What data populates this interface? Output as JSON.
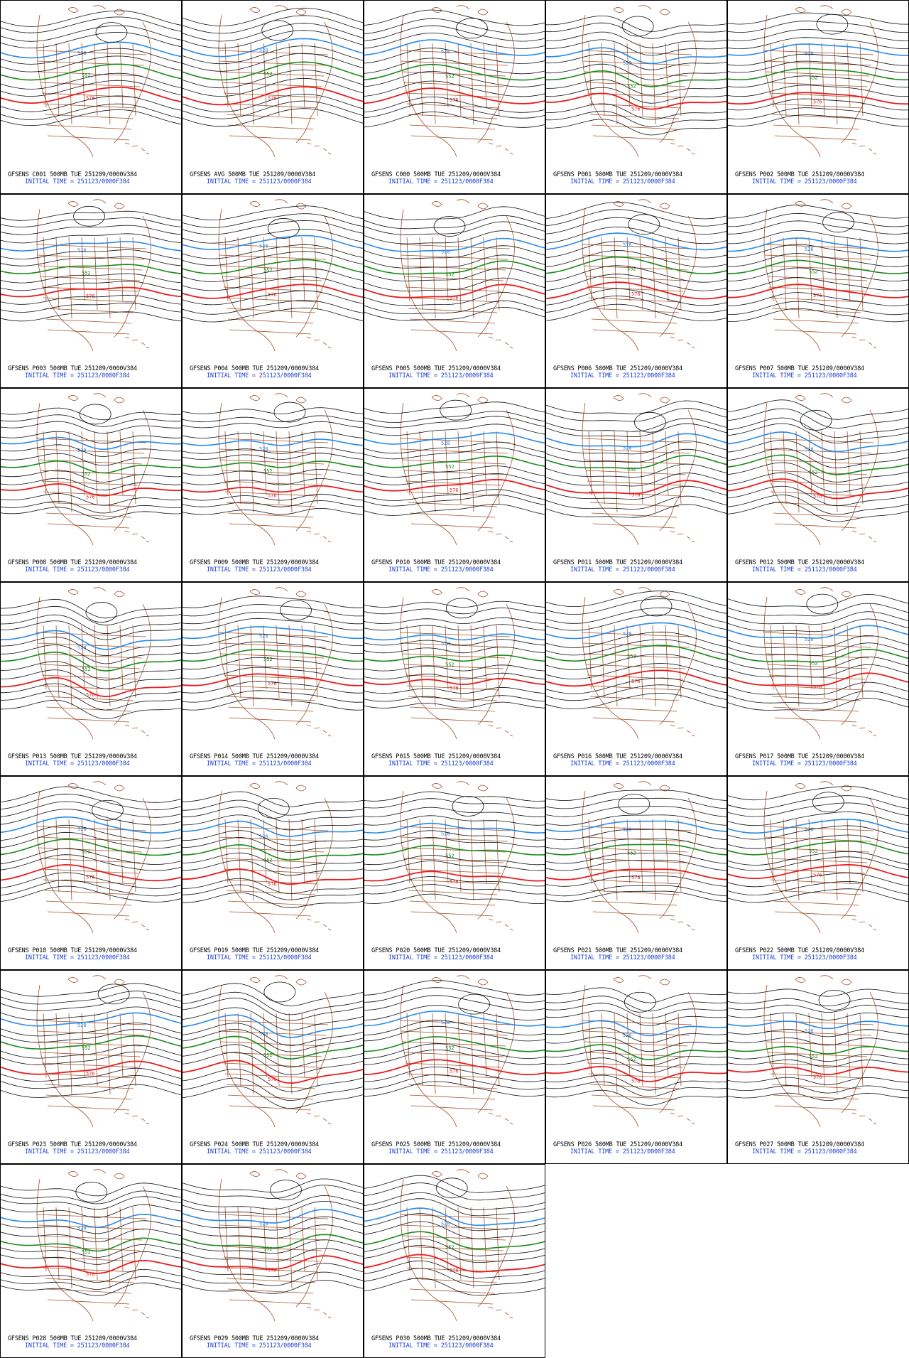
{
  "page": {
    "columns": 5,
    "initial_time_label": "INITIAL TIME = 251123/0000F384"
  },
  "colors": {
    "contour": "#111111",
    "contour_552": "#1a8a1a",
    "contour_576": "#e81c1c",
    "contour_528": "#2a8ae8",
    "map_border": "#a0522d",
    "caption_main": "#000000",
    "caption_time": "#1d3fd0"
  },
  "contour_labels": {
    "blue": "528",
    "green": "552",
    "red": "576"
  },
  "panels": [
    {
      "caption": "GFSENS C001 500MB TUE 251209/0000V384",
      "time": "INITIAL TIME = 251123/0000F384",
      "trough": 0.1
    },
    {
      "caption": "GFSENS AVG 500MB TUE 251209/0000V384",
      "time": "INITIAL TIME = 251123/0000F384",
      "trough": 0.0
    },
    {
      "caption": "GFSENS C000 500MB TUE 251209/0000V384",
      "time": "INITIAL TIME = 251123/0000F384",
      "trough": 0.2
    },
    {
      "caption": "GFSENS P001 500MB TUE 251209/0000V384",
      "time": "INITIAL TIME = 251123/0000F384",
      "trough": 0.9
    },
    {
      "caption": "GFSENS P002 500MB TUE 251209/0000V384",
      "time": "INITIAL TIME = 251123/0000F384",
      "trough": 0.3
    },
    {
      "caption": "GFSENS P003 500MB TUE 251209/0000V384",
      "time": "INITIAL TIME = 251123/0000F384",
      "trough": 0.4
    },
    {
      "caption": "GFSENS P004 500MB TUE 251209/0000V384",
      "time": "INITIAL TIME = 251123/0000F384",
      "trough": 0.2
    },
    {
      "caption": "GFSENS P005 500MB TUE 251209/0000V384",
      "time": "INITIAL TIME = 251123/0000F384",
      "trough": 0.5
    },
    {
      "caption": "GFSENS P006 500MB TUE 251209/0000V384",
      "time": "INITIAL TIME = 251123/0000F384",
      "trough": 0.1
    },
    {
      "caption": "GFSENS P007 500MB TUE 251209/0000V384",
      "time": "INITIAL TIME = 251123/0000F384",
      "trough": 0.3
    },
    {
      "caption": "GFSENS P008 500MB TUE 251209/0000V384",
      "time": "INITIAL TIME = 251123/0000F384",
      "trough": 0.9
    },
    {
      "caption": "GFSENS P009 500MB TUE 251209/0000V384",
      "time": "INITIAL TIME = 251123/0000F384",
      "trough": 0.7
    },
    {
      "caption": "GFSENS P010 500MB TUE 251209/0000V384",
      "time": "INITIAL TIME = 251123/0000F384",
      "trough": 0.4
    },
    {
      "caption": "GFSENS P011 500MB TUE 251209/0000V384",
      "time": "INITIAL TIME = 251123/0000F384",
      "trough": 0.6
    },
    {
      "caption": "GFSENS P012 500MB TUE 251209/0000V384",
      "time": "INITIAL TIME = 251123/0000F384",
      "trough": 0.8
    },
    {
      "caption": "GFSENS P013 500MB TUE 251209/0000V384",
      "time": "INITIAL TIME = 251123/0000F384",
      "trough": 1.0
    },
    {
      "caption": "GFSENS P014 500MB TUE 251209/0000V384",
      "time": "INITIAL TIME = 251123/0000F384",
      "trough": 0.3
    },
    {
      "caption": "GFSENS P015 500MB TUE 251209/0000V384",
      "time": "INITIAL TIME = 251123/0000F384",
      "trough": 0.7
    },
    {
      "caption": "GFSENS P016 500MB TUE 251209/0000V384",
      "time": "INITIAL TIME = 251123/0000F384",
      "trough": 0.1
    },
    {
      "caption": "GFSENS P017 500MB TUE 251209/0000V384",
      "time": "INITIAL TIME = 251123/0000F384",
      "trough": 0.6
    },
    {
      "caption": "GFSENS P018 500MB TUE 251209/0000V384",
      "time": "INITIAL TIME = 251123/0000F384",
      "trough": 0.2
    },
    {
      "caption": "GFSENS P019 500MB TUE 251209/0000V384",
      "time": "INITIAL TIME = 251123/0000F384",
      "trough": 0.8
    },
    {
      "caption": "GFSENS P020 500MB TUE 251209/0000V384",
      "time": "INITIAL TIME = 251123/0000F384",
      "trough": 0.5
    },
    {
      "caption": "GFSENS P021 500MB TUE 251209/0000V384",
      "time": "INITIAL TIME = 251123/0000F384",
      "trough": 0.3
    },
    {
      "caption": "GFSENS P022 500MB TUE 251209/0000V384",
      "time": "INITIAL TIME = 251123/0000F384",
      "trough": 0.2
    },
    {
      "caption": "GFSENS P023 500MB TUE 251209/0000V384",
      "time": "INITIAL TIME = 251123/0000F384",
      "trough": 0.4
    },
    {
      "caption": "GFSENS P024 500MB TUE 251209/0000V384",
      "time": "INITIAL TIME = 251123/0000F384",
      "trough": 0.9
    },
    {
      "caption": "GFSENS P025 500MB TUE 251209/0000V384",
      "time": "INITIAL TIME = 251123/0000F384",
      "trough": 0.2
    },
    {
      "caption": "GFSENS P026 500MB TUE 251209/0000V384",
      "time": "INITIAL TIME = 251123/0000F384",
      "trough": 1.0
    },
    {
      "caption": "GFSENS P027 500MB TUE 251209/0000V384",
      "time": "INITIAL TIME = 251123/0000F384",
      "trough": 0.8
    },
    {
      "caption": "GFSENS P028 500MB TUE 251209/0000V384",
      "time": "INITIAL TIME = 251123/0000F384",
      "trough": 0.9
    },
    {
      "caption": "GFSENS P029 500MB TUE 251209/0000V384",
      "time": "INITIAL TIME = 251123/0000F384",
      "trough": 0.7
    },
    {
      "caption": "GFSENS P030 500MB TUE 251209/0000V384",
      "time": "INITIAL TIME = 251123/0000F384",
      "trough": 0.6
    }
  ]
}
